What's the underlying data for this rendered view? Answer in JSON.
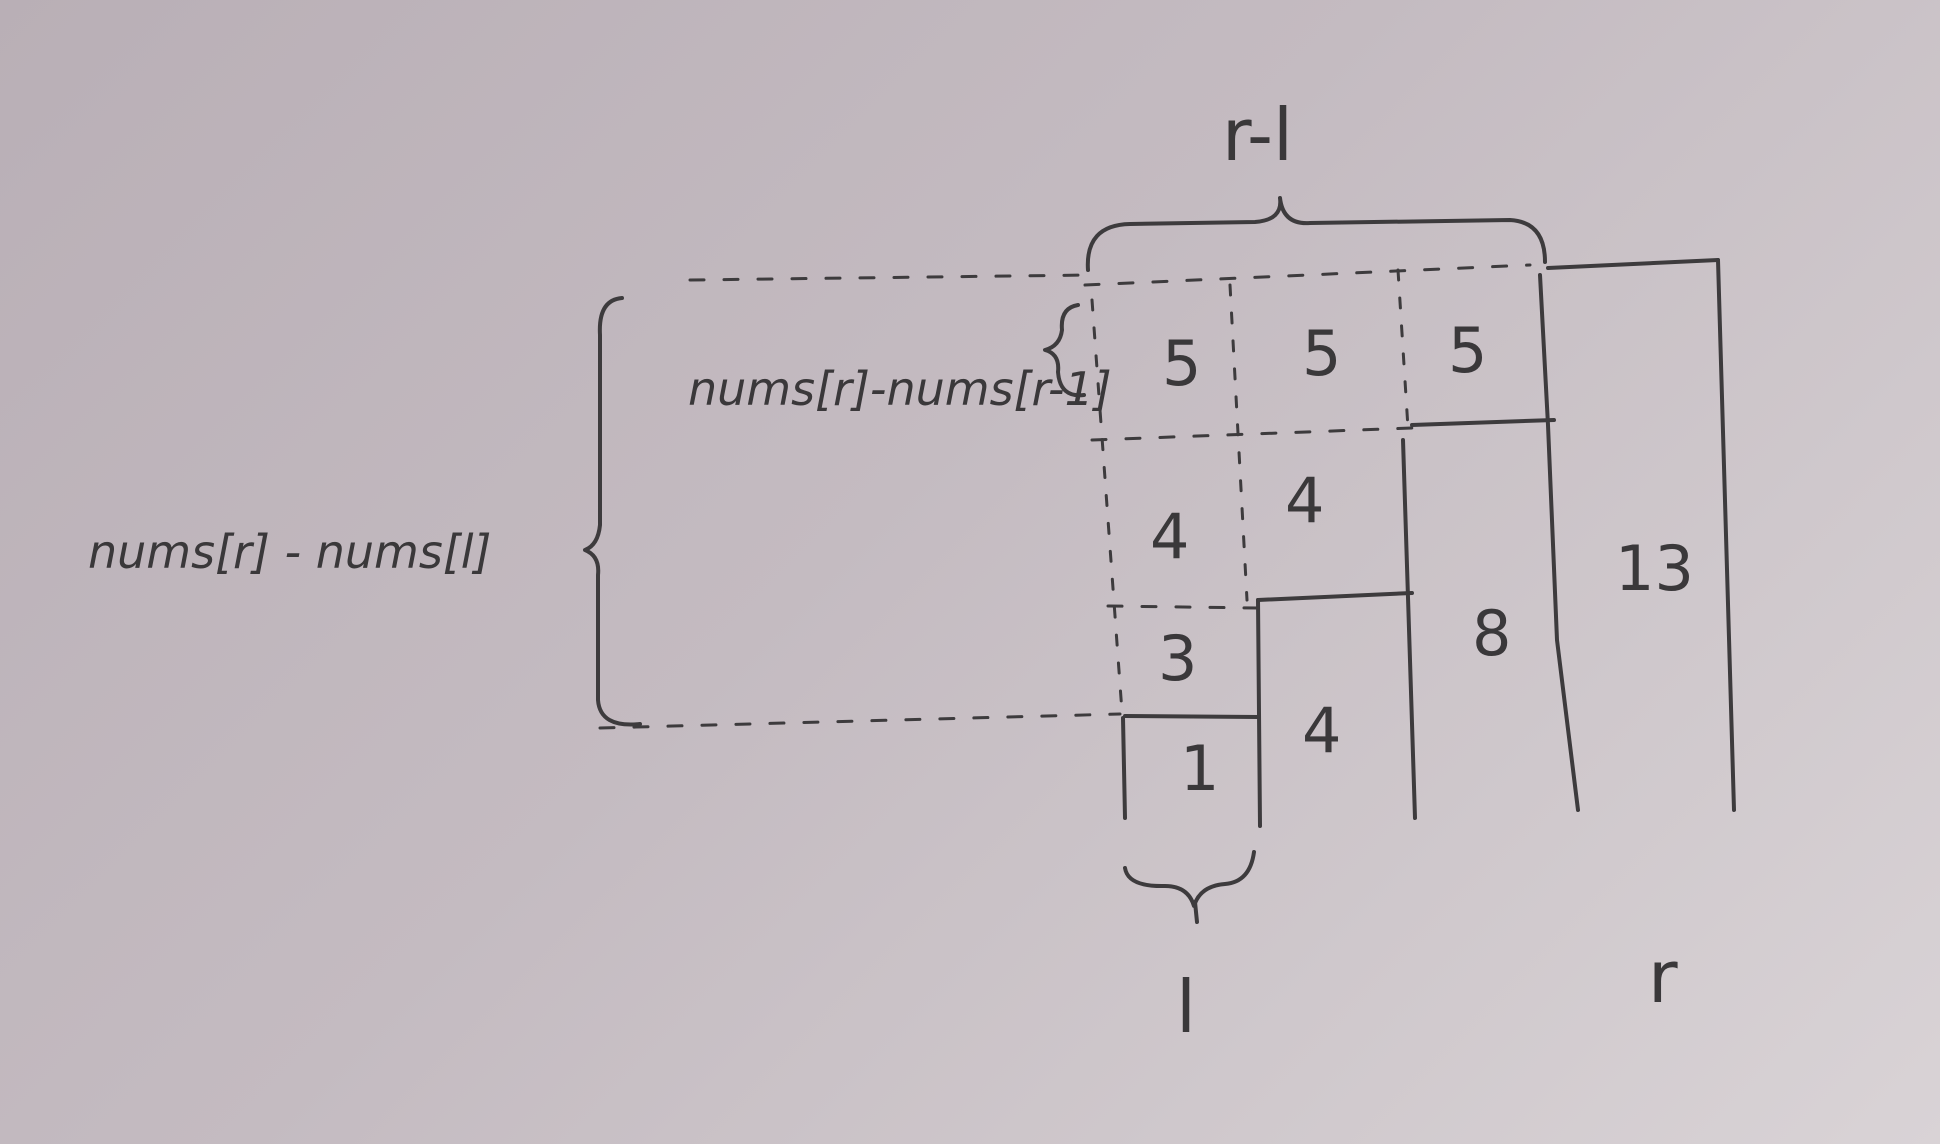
{
  "labels": {
    "top_span": "r-l",
    "left_formula": "nums[r] - nums[l]",
    "inner_formula": "nums[r]-nums[r-1]",
    "left_index": "l",
    "right_index": "r"
  },
  "bar_values": {
    "col1": [
      "1",
      "3",
      "4",
      "5"
    ],
    "col2": [
      "4",
      "4",
      "5"
    ],
    "col3": [
      "8",
      "5"
    ],
    "col4": [
      "13"
    ]
  }
}
